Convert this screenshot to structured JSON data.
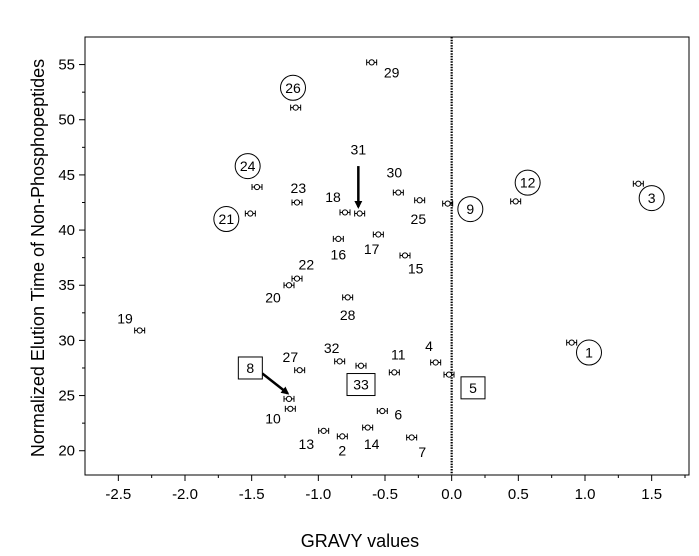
{
  "chart_data": {
    "type": "scatter",
    "title": "",
    "xlabel": "GRAVY values",
    "ylabel": "Normalized Elution Time of Non-Phosphopeptides",
    "xlim": [
      -2.75,
      1.78
    ],
    "ylim": [
      17.8,
      57.5
    ],
    "x_ticks": [
      "-2.5",
      "-2.0",
      "-1.5",
      "-1.0",
      "-0.5",
      "0.0",
      "0.5",
      "1.0",
      "1.5"
    ],
    "y_ticks": [
      "20",
      "25",
      "30",
      "35",
      "40",
      "45",
      "50",
      "55"
    ],
    "vertical_reference_line": {
      "x": 0.0,
      "style": "dotted"
    },
    "grid": false,
    "error_bars": "horizontal",
    "points": [
      {
        "label": "1",
        "x": 0.9,
        "y": 29.8,
        "marker": "circle",
        "lx": 1.03,
        "ly": 28.9
      },
      {
        "label": "2",
        "x": -0.82,
        "y": 21.3,
        "marker": "none",
        "lx": -0.82,
        "ly": 20.0
      },
      {
        "label": "3",
        "x": 1.4,
        "y": 44.2,
        "marker": "circle",
        "lx": 1.5,
        "ly": 42.9
      },
      {
        "label": "4",
        "x": -0.12,
        "y": 28.0,
        "marker": "none",
        "lx": -0.17,
        "ly": 29.5
      },
      {
        "label": "5",
        "x": -0.02,
        "y": 26.9,
        "marker": "box",
        "lx": 0.16,
        "ly": 25.7
      },
      {
        "label": "6",
        "x": -0.52,
        "y": 23.6,
        "marker": "none",
        "lx": -0.4,
        "ly": 23.3
      },
      {
        "label": "7",
        "x": -0.3,
        "y": 21.2,
        "marker": "none",
        "lx": -0.22,
        "ly": 19.9
      },
      {
        "label": "8",
        "x": -1.22,
        "y": 24.7,
        "marker": "box",
        "lx": -1.51,
        "ly": 27.5
      },
      {
        "label": "9",
        "x": -0.03,
        "y": 42.4,
        "marker": "circle",
        "lx": 0.14,
        "ly": 41.9
      },
      {
        "label": "10",
        "x": -1.21,
        "y": 23.8,
        "marker": "none",
        "lx": -1.34,
        "ly": 22.9
      },
      {
        "label": "11",
        "x": -0.43,
        "y": 27.1,
        "marker": "none",
        "lx": -0.4,
        "ly": 28.7
      },
      {
        "label": "12",
        "x": 0.48,
        "y": 42.6,
        "marker": "circle",
        "lx": 0.57,
        "ly": 44.3
      },
      {
        "label": "13",
        "x": -0.96,
        "y": 21.8,
        "marker": "none",
        "lx": -1.09,
        "ly": 20.6
      },
      {
        "label": "14",
        "x": -0.63,
        "y": 22.1,
        "marker": "none",
        "lx": -0.6,
        "ly": 20.6
      },
      {
        "label": "15",
        "x": -0.35,
        "y": 37.7,
        "marker": "none",
        "lx": -0.27,
        "ly": 36.5
      },
      {
        "label": "16",
        "x": -0.85,
        "y": 39.2,
        "marker": "none",
        "lx": -0.85,
        "ly": 37.8
      },
      {
        "label": "17",
        "x": -0.55,
        "y": 39.6,
        "marker": "none",
        "lx": -0.6,
        "ly": 38.3
      },
      {
        "label": "18",
        "x": -0.8,
        "y": 41.6,
        "marker": "none",
        "lx": -0.89,
        "ly": 43.0
      },
      {
        "label": "19",
        "x": -2.34,
        "y": 30.9,
        "marker": "none",
        "lx": -2.45,
        "ly": 32.0
      },
      {
        "label": "20",
        "x": -1.22,
        "y": 35.0,
        "marker": "none",
        "lx": -1.34,
        "ly": 33.9
      },
      {
        "label": "21",
        "x": -1.51,
        "y": 41.5,
        "marker": "circle",
        "lx": -1.69,
        "ly": 41.0
      },
      {
        "label": "22",
        "x": -1.16,
        "y": 35.6,
        "marker": "none",
        "lx": -1.09,
        "ly": 36.9
      },
      {
        "label": "23",
        "x": -1.16,
        "y": 42.5,
        "marker": "none",
        "lx": -1.15,
        "ly": 43.8
      },
      {
        "label": "24",
        "x": -1.46,
        "y": 43.9,
        "marker": "circle",
        "lx": -1.53,
        "ly": 45.8
      },
      {
        "label": "25",
        "x": -0.24,
        "y": 42.7,
        "marker": "none",
        "lx": -0.25,
        "ly": 41.0
      },
      {
        "label": "26",
        "x": -1.17,
        "y": 51.1,
        "marker": "circle",
        "lx": -1.19,
        "ly": 52.9
      },
      {
        "label": "27",
        "x": -1.14,
        "y": 27.3,
        "marker": "none",
        "lx": -1.21,
        "ly": 28.5
      },
      {
        "label": "28",
        "x": -0.78,
        "y": 33.9,
        "marker": "none",
        "lx": -0.78,
        "ly": 32.3
      },
      {
        "label": "29",
        "x": -0.6,
        "y": 55.2,
        "marker": "none",
        "lx": -0.45,
        "ly": 54.3
      },
      {
        "label": "30",
        "x": -0.4,
        "y": 43.4,
        "marker": "none",
        "lx": -0.43,
        "ly": 45.2
      },
      {
        "label": "31",
        "x": -0.69,
        "y": 41.5,
        "marker": "none",
        "lx": -0.7,
        "ly": 47.3
      },
      {
        "label": "32",
        "x": -0.84,
        "y": 28.1,
        "marker": "none",
        "lx": -0.9,
        "ly": 29.3
      },
      {
        "label": "33",
        "x": -0.68,
        "y": 27.7,
        "marker": "box",
        "lx": -0.68,
        "ly": 26.0
      }
    ],
    "arrows": [
      {
        "from_label": "31",
        "x1": -0.7,
        "y1": 45.8,
        "x2": -0.7,
        "y2": 42.1
      },
      {
        "from_label": "8",
        "x1": -1.42,
        "y1": 27.0,
        "x2": -1.23,
        "y2": 25.2
      }
    ]
  }
}
